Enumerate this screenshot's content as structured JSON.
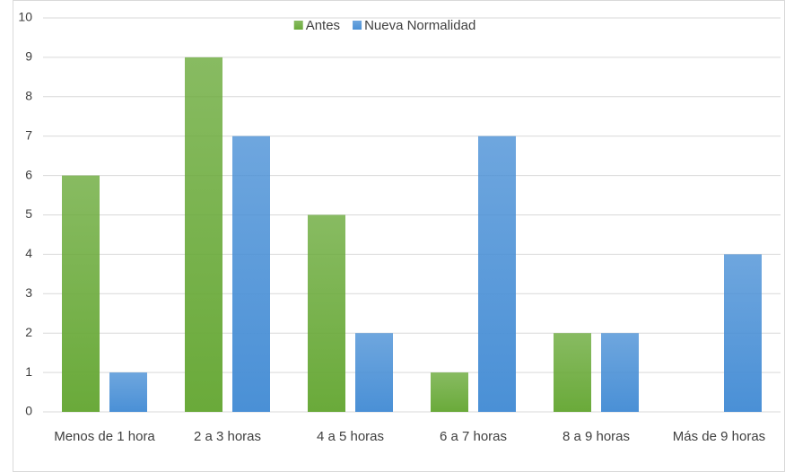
{
  "chart_data": {
    "type": "bar",
    "categories": [
      "Menos de 1 hora",
      "2 a 3 horas",
      "4 a 5 horas",
      "6 a 7 horas",
      "8 a 9 horas",
      "Más de 9 horas"
    ],
    "series": [
      {
        "name": "Antes",
        "color": "#6aaa3a",
        "values": [
          6,
          9,
          5,
          1,
          2,
          0
        ]
      },
      {
        "name": "Nueva Normalidad",
        "color": "#4a90d6",
        "values": [
          1,
          7,
          2,
          7,
          2,
          4
        ]
      }
    ],
    "ylim": [
      0,
      10
    ],
    "yticks": [
      0,
      1,
      2,
      3,
      4,
      5,
      6,
      7,
      8,
      9,
      10
    ],
    "grid": true,
    "legend": "top"
  }
}
